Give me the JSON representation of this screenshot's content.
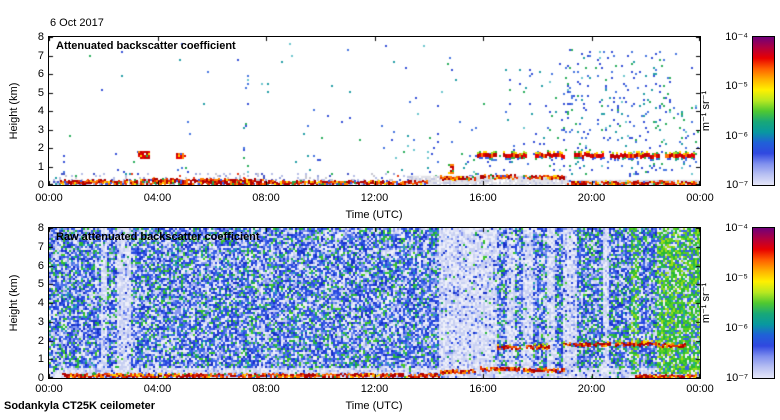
{
  "page": {
    "date_label": "6 Oct 2017",
    "footer": "Sodankyla CT25K ceilometer"
  },
  "chart_data": [
    {
      "type": "heatmap",
      "title": "Attenuated backscatter coefficient",
      "xlabel": "Time (UTC)",
      "ylabel": "Height (km)",
      "x_ticks": [
        "00:00",
        "04:00",
        "08:00",
        "12:00",
        "16:00",
        "20:00",
        "00:00"
      ],
      "y_ticks": [
        "0",
        "1",
        "2",
        "3",
        "4",
        "5",
        "6",
        "7",
        "8"
      ],
      "xlim_hours": [
        0,
        24
      ],
      "ylim_km": [
        0,
        8
      ],
      "grid": false,
      "colorbar": {
        "labels": [
          "10⁻⁴",
          "10⁻⁵",
          "10⁻⁶",
          "10⁻⁷"
        ],
        "unit": "m⁻¹ sr⁻¹",
        "scale": "log",
        "stops": [
          "#70007a",
          "#b00040",
          "#e80000",
          "#ff6000",
          "#ffb000",
          "#fff000",
          "#b8e820",
          "#50c830",
          "#18a878",
          "#0898a0",
          "#2060d8",
          "#3048e0",
          "#8090ee",
          "#b8c0f2",
          "#e4e6f8"
        ]
      },
      "features": {
        "background": "#ffffff",
        "sparse_density": 0.0035,
        "boundary_layer_top_km": 0.35,
        "grey_fill": [
          {
            "x0": 0.55,
            "x1": 0.795,
            "top": 0.5
          },
          {
            "x0": 0.795,
            "x1": 1.0,
            "top": 0.28
          }
        ],
        "precip_columns": [
          {
            "x0": 0.063,
            "x1": 0.072,
            "top": 3.1,
            "d": 0.04
          },
          {
            "x0": 0.1,
            "x1": 0.16,
            "top": 1.4,
            "d": 0.05
          },
          {
            "x0": 0.195,
            "x1": 0.215,
            "top": 1.3,
            "d": 0.05
          },
          {
            "x0": 0.295,
            "x1": 0.306,
            "top": 6.7,
            "d": 0.04
          },
          {
            "x0": 0.34,
            "x1": 0.43,
            "top": 4.2,
            "d": 0.018
          },
          {
            "x0": 0.5,
            "x1": 0.56,
            "top": 3.2,
            "d": 0.022
          },
          {
            "x0": 0.565,
            "x1": 0.6,
            "top": 5.3,
            "d": 0.028
          },
          {
            "x0": 0.63,
            "x1": 0.79,
            "top": 1.9,
            "d": 0.06
          },
          {
            "x0": 0.7,
            "x1": 0.78,
            "top": 6.4,
            "d": 0.035
          },
          {
            "x0": 0.785,
            "x1": 0.835,
            "top": 7.5,
            "d": 0.09
          },
          {
            "x0": 0.84,
            "x1": 0.955,
            "top": 7.3,
            "d": 0.075
          },
          {
            "x0": 0.955,
            "x1": 0.995,
            "top": 4.5,
            "d": 0.05
          }
        ],
        "surface_red_segments": [
          {
            "x0": 0.01,
            "x1": 0.13,
            "y": 0.15,
            "t": 2
          },
          {
            "x0": 0.13,
            "x1": 0.33,
            "y": 0.22,
            "t": 3
          },
          {
            "x0": 0.33,
            "x1": 0.58,
            "y": 0.12,
            "t": 2
          },
          {
            "x0": 0.6,
            "x1": 0.655,
            "y": 0.38,
            "t": 2
          },
          {
            "x0": 0.662,
            "x1": 0.72,
            "y": 0.45,
            "t": 2
          },
          {
            "x0": 0.728,
            "x1": 0.79,
            "y": 0.4,
            "t": 2
          },
          {
            "x0": 0.795,
            "x1": 0.995,
            "y": 0.1,
            "t": 2
          }
        ],
        "cloud_y_km": 1.7,
        "cloud_segments": [
          [
            0.657,
            0.688
          ],
          [
            0.698,
            0.733
          ],
          [
            0.747,
            0.792
          ],
          [
            0.806,
            0.852
          ],
          [
            0.862,
            0.937
          ],
          [
            0.947,
            0.992
          ]
        ],
        "cloud_blobs": [
          {
            "x": 0.145,
            "w": 0.016,
            "y": 1.65,
            "h": 0.38
          },
          {
            "x": 0.202,
            "w": 0.013,
            "y": 1.6,
            "h": 0.28
          },
          {
            "x": 0.617,
            "w": 0.008,
            "y": 0.9,
            "h": 0.5
          }
        ]
      }
    },
    {
      "type": "heatmap",
      "title": "Raw attenuated backscatter coefficient",
      "xlabel": "Time (UTC)",
      "ylabel": "Height (km)",
      "x_ticks": [
        "00:00",
        "04:00",
        "08:00",
        "12:00",
        "16:00",
        "20:00",
        "00:00"
      ],
      "y_ticks": [
        "0",
        "1",
        "2",
        "3",
        "4",
        "5",
        "6",
        "7",
        "8"
      ],
      "xlim_hours": [
        0,
        24
      ],
      "ylim_km": [
        0,
        8
      ],
      "grid": false,
      "colorbar": {
        "labels": [
          "10⁻⁴",
          "10⁻⁵",
          "10⁻⁶",
          "10⁻⁷"
        ],
        "unit": "m⁻¹ sr⁻¹",
        "scale": "log",
        "stops": [
          "#70007a",
          "#b00040",
          "#e80000",
          "#ff6000",
          "#ffb000",
          "#fff000",
          "#b8e820",
          "#50c830",
          "#18a878",
          "#0898a0",
          "#2060d8",
          "#3048e0",
          "#8090ee",
          "#b8c0f2",
          "#e4e6f8"
        ]
      },
      "features": {
        "noise_green_frac": 0.12,
        "low_band_km": 0.55,
        "pale_bands": [
          [
            0.079,
            0.089
          ],
          [
            0.104,
            0.123
          ],
          [
            0.598,
            0.686
          ],
          [
            0.702,
            0.714
          ],
          [
            0.728,
            0.743
          ],
          [
            0.762,
            0.777
          ],
          [
            0.787,
            0.809
          ],
          [
            0.848,
            0.858
          ]
        ],
        "green_regions": [
          [
            0.893,
            0.906
          ],
          [
            0.932,
            1.0
          ]
        ],
        "green_boost": {
          "x0": 0.78,
          "x1": 0.932,
          "frac": 0.18
        },
        "surface_red_segments": [
          {
            "x0": 0.02,
            "x1": 0.6,
            "y": 0.13,
            "t": 2
          },
          {
            "x0": 0.6,
            "x1": 0.655,
            "y": 0.33,
            "t": 2
          },
          {
            "x0": 0.662,
            "x1": 0.722,
            "y": 0.46,
            "t": 2
          },
          {
            "x0": 0.728,
            "x1": 0.79,
            "y": 0.41,
            "t": 2
          },
          {
            "x0": 0.9,
            "x1": 0.995,
            "y": 0.08,
            "t": 2
          }
        ],
        "cloud_red_segments": [
          {
            "x0": 0.688,
            "x1": 0.723,
            "y": 1.62,
            "t": 2
          },
          {
            "x0": 0.732,
            "x1": 0.768,
            "y": 1.66,
            "t": 2
          },
          {
            "x0": 0.79,
            "x1": 0.863,
            "y": 1.78,
            "t": 2
          },
          {
            "x0": 0.869,
            "x1": 0.933,
            "y": 1.82,
            "t": 2
          },
          {
            "x0": 0.936,
            "x1": 0.976,
            "y": 1.74,
            "t": 2
          }
        ],
        "red_blobs": [
          {
            "x": 0.113,
            "y": 1.6,
            "w": 0.012,
            "h": 0.3
          }
        ]
      }
    }
  ]
}
